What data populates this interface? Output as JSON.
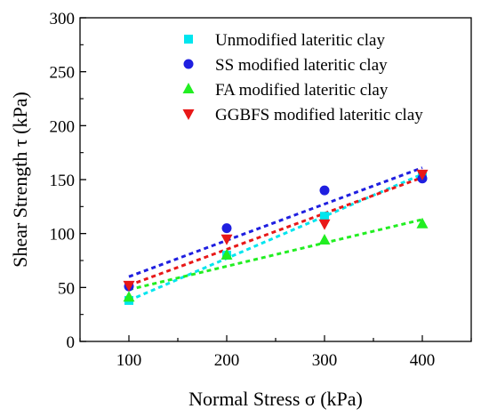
{
  "chart_data": {
    "type": "scatter",
    "title": "",
    "xlabel": "Normal Stress σ (kPa)",
    "ylabel": "Shear Strength τ (kPa)",
    "xlim": [
      50,
      450
    ],
    "ylim": [
      0,
      300
    ],
    "x_ticks": [
      100,
      200,
      300,
      400
    ],
    "y_ticks": [
      0,
      50,
      100,
      150,
      200,
      250,
      300
    ],
    "grid": false,
    "legend_position": "top-right",
    "series": [
      {
        "name": "Unmodified lateritic clay",
        "marker": "square",
        "color": "#00e5ee",
        "x": [
          100,
          200,
          300,
          400
        ],
        "y": [
          38,
          80,
          116,
          153
        ],
        "fit_line": {
          "x": [
            100,
            400
          ],
          "y": [
            38,
            155
          ]
        }
      },
      {
        "name": "SS modified lateritic clay",
        "marker": "circle",
        "color": "#1f1fe0",
        "x": [
          100,
          200,
          300,
          400
        ],
        "y": [
          51,
          105,
          140,
          151
        ],
        "fit_line": {
          "x": [
            100,
            400
          ],
          "y": [
            60,
            161
          ]
        }
      },
      {
        "name": "FA modified lateritic clay",
        "marker": "triangle-up",
        "color": "#22ee22",
        "x": [
          100,
          200,
          300,
          400
        ],
        "y": [
          41,
          80,
          94,
          109
        ],
        "fit_line": {
          "x": [
            100,
            400
          ],
          "y": [
            48,
            113
          ]
        }
      },
      {
        "name": "GGBFS modified lateritic clay",
        "marker": "triangle-down",
        "color": "#e81818",
        "x": [
          100,
          200,
          300,
          400
        ],
        "y": [
          52,
          95,
          109,
          155
        ],
        "fit_line": {
          "x": [
            100,
            400
          ],
          "y": [
            52,
            152
          ]
        }
      }
    ]
  }
}
